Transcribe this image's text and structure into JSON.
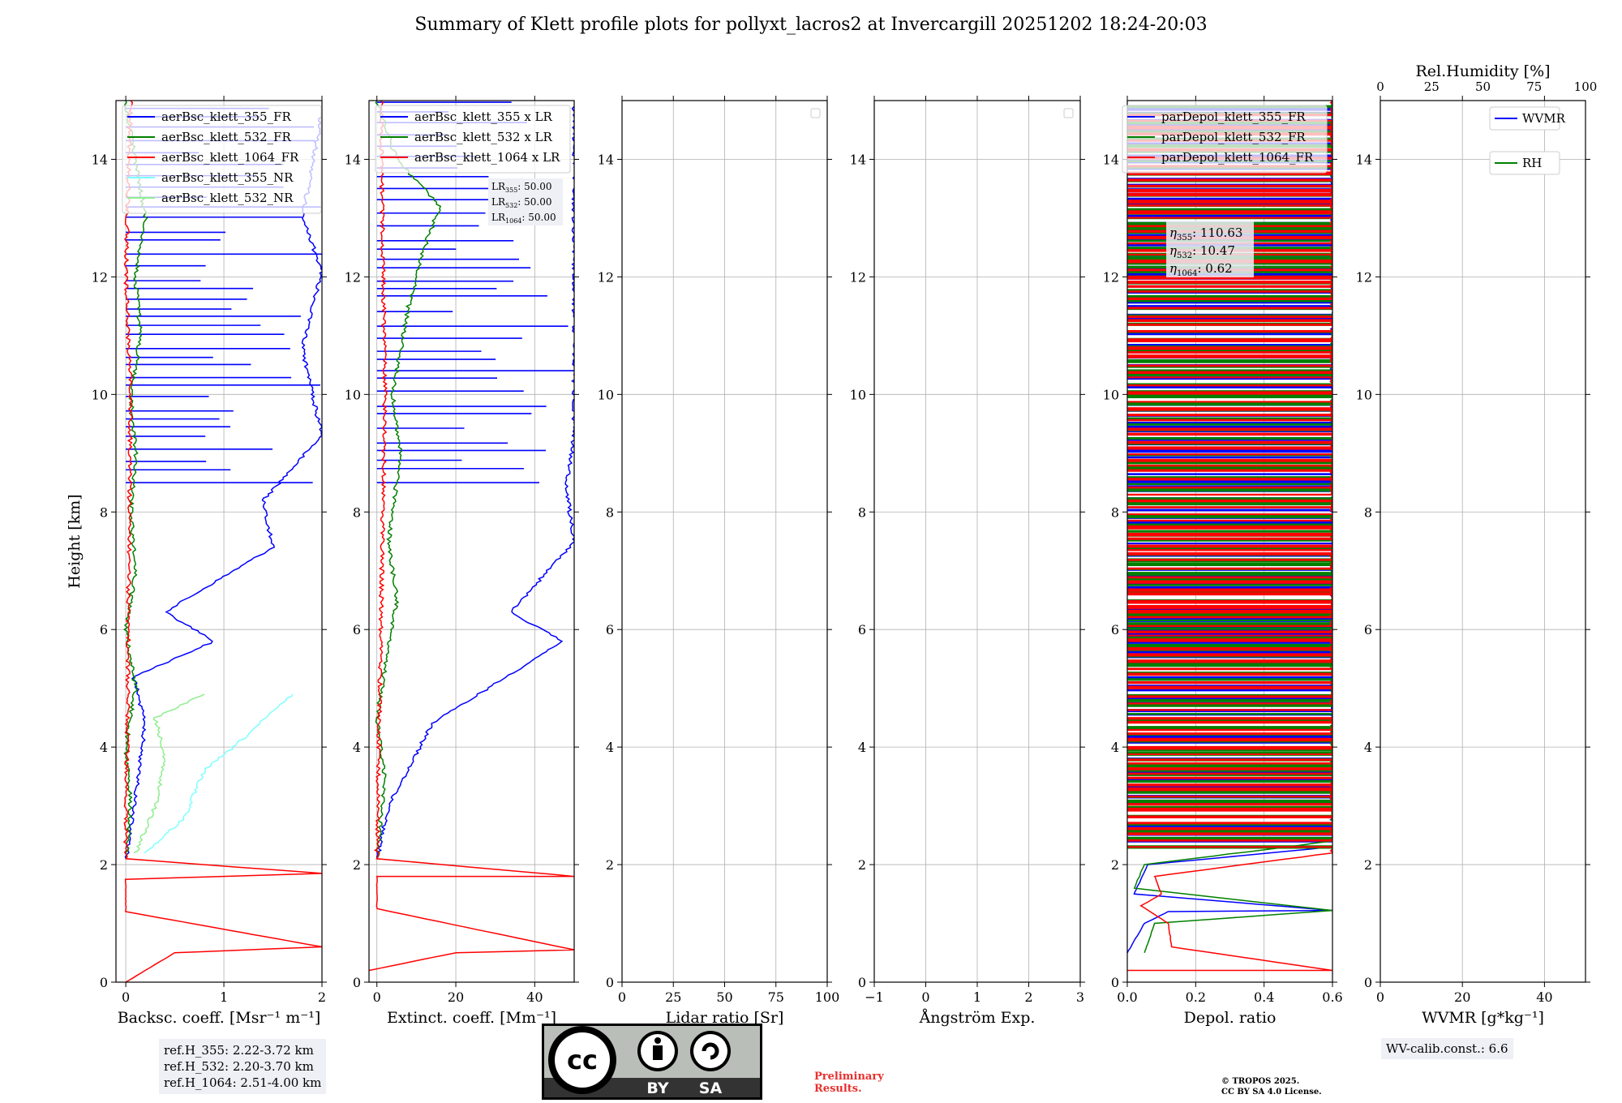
{
  "figure": {
    "title": "Summary of Klett profile plots for pollyxt_lacros2 at Invercargill 20251202 18:24-20:03",
    "ref_heights": [
      "ref.H_355: 2.22-3.72 km",
      "ref.H_532: 2.20-3.70 km",
      "ref.H_1064: 2.51-4.00 km"
    ],
    "preliminary": [
      "Preliminary",
      "Results."
    ],
    "copyright": [
      "© TROPOS 2025.",
      "CC BY SA 4.0 License."
    ],
    "wv_calib": "WV-calib.const.: 6.6",
    "license_badge": [
      "BY",
      "SA"
    ],
    "colors": {
      "c355": "#0000ff",
      "c532": "#008000",
      "c1064": "#ff0000",
      "cnr355": "#7fffff",
      "cnr532": "#90ee90"
    }
  },
  "chart_data": [
    {
      "type": "line",
      "panel": "backscatter",
      "ylabel": "Height [km]",
      "xlabel": "Backsc. coeff. [Msr⁻¹ m⁻¹]",
      "xlim": [
        -0.1,
        2.0
      ],
      "ylim": [
        0,
        15
      ],
      "xticks": [
        "0",
        "1",
        "2"
      ],
      "xtick_values": [
        0,
        1,
        2
      ],
      "yticks": [
        "0",
        "2",
        "4",
        "6",
        "8",
        "10",
        "12",
        "14"
      ],
      "legend": [
        "aerBsc_klett_355_FR",
        "aerBsc_klett_532_FR",
        "aerBsc_klett_1064_FR",
        "aerBsc_klett_355_NR",
        "aerBsc_klett_532_NR"
      ],
      "series": [
        {
          "name": "aerBsc_klett_355_FR",
          "color": "#0000ff",
          "points": [
            [
              0.0,
              2.1
            ],
            [
              0.05,
              2.6
            ],
            [
              0.1,
              3.2
            ],
            [
              0.2,
              4.4
            ],
            [
              0.08,
              5.2
            ],
            [
              0.9,
              5.8
            ],
            [
              0.4,
              6.3
            ],
            [
              1.5,
              7.4
            ],
            [
              1.4,
              8.2
            ],
            [
              2.0,
              9.3
            ],
            [
              1.9,
              10.0
            ],
            [
              1.8,
              10.8
            ],
            [
              2.0,
              12.1
            ],
            [
              1.8,
              13.0
            ],
            [
              2.0,
              14.8
            ]
          ]
        },
        {
          "name": "aerBsc_klett_532_FR",
          "color": "#008000",
          "points": [
            [
              0.0,
              2.1
            ],
            [
              0.05,
              3.0
            ],
            [
              0.0,
              4.0
            ],
            [
              0.1,
              5.0
            ],
            [
              0.0,
              6.0
            ],
            [
              0.1,
              7.0
            ],
            [
              0.05,
              8.0
            ],
            [
              0.1,
              9.0
            ],
            [
              0.05,
              10.0
            ],
            [
              0.15,
              11.0
            ],
            [
              0.1,
              12.0
            ],
            [
              0.2,
              13.0
            ],
            [
              0.1,
              14.0
            ],
            [
              0.0,
              15.0
            ]
          ]
        },
        {
          "name": "aerBsc_klett_1064_FR",
          "color": "#ff0000",
          "points": [
            [
              0.0,
              0.0
            ],
            [
              0.5,
              0.5
            ],
            [
              2.0,
              0.6
            ],
            [
              0.0,
              1.2
            ],
            [
              0.0,
              1.75
            ],
            [
              2.0,
              1.85
            ],
            [
              0.0,
              2.1
            ],
            [
              0.02,
              5.0
            ],
            [
              0.05,
              10.0
            ],
            [
              0.0,
              12.0
            ],
            [
              0.05,
              15.0
            ]
          ]
        },
        {
          "name": "aerBsc_klett_355_NR",
          "color": "#7fffff",
          "points": [
            [
              0.2,
              2.2
            ],
            [
              0.6,
              2.8
            ],
            [
              0.8,
              3.6
            ],
            [
              1.1,
              4.0
            ],
            [
              1.7,
              4.9
            ]
          ]
        },
        {
          "name": "aerBsc_klett_532_NR",
          "color": "#90ee90",
          "points": [
            [
              0.1,
              2.2
            ],
            [
              0.3,
              3.0
            ],
            [
              0.4,
              3.8
            ],
            [
              0.3,
              4.5
            ],
            [
              0.8,
              4.9
            ]
          ]
        }
      ]
    },
    {
      "type": "line",
      "panel": "extinction",
      "xlabel": "Extinct. coeff. [Mm⁻¹]",
      "xlim": [
        -2,
        50
      ],
      "ylim": [
        0,
        15
      ],
      "xticks": [
        "0",
        "20",
        "40"
      ],
      "xtick_values": [
        0,
        20,
        40
      ],
      "yticks": [
        "0",
        "2",
        "4",
        "6",
        "8",
        "10",
        "12",
        "14"
      ],
      "legend": [
        "aerBsc_klett_355 x LR",
        "aerBsc_klett_532 x LR",
        "aerBsc_klett_1064 x LR"
      ],
      "lr_labels": {
        "LR355": "50.00",
        "LR532": "50.00",
        "LR1064": "50.00"
      },
      "series": [
        {
          "name": "aerBsc_klett_355 x LR",
          "color": "#0000ff",
          "points": [
            [
              0,
              2.1
            ],
            [
              3,
              3.0
            ],
            [
              14,
              4.4
            ],
            [
              47,
              5.8
            ],
            [
              34,
              6.3
            ],
            [
              50,
              7.5
            ],
            [
              48,
              8.4
            ],
            [
              50,
              9.3
            ],
            [
              50,
              10.3
            ],
            [
              50,
              12.0
            ],
            [
              50,
              13.5
            ],
            [
              50,
              14.9
            ]
          ]
        },
        {
          "name": "aerBsc_klett_532 x LR",
          "color": "#008000",
          "points": [
            [
              0,
              2.1
            ],
            [
              2,
              3.5
            ],
            [
              0,
              4.5
            ],
            [
              5,
              6.5
            ],
            [
              3,
              7.5
            ],
            [
              6,
              9.0
            ],
            [
              4,
              10.0
            ],
            [
              8,
              11.5
            ],
            [
              12,
              12.5
            ],
            [
              16,
              13.2
            ],
            [
              5,
              14.0
            ],
            [
              0,
              15.0
            ]
          ]
        },
        {
          "name": "aerBsc_klett_1064 x LR",
          "color": "#ff0000",
          "points": [
            [
              -2,
              0.2
            ],
            [
              20,
              0.5
            ],
            [
              50,
              0.55
            ],
            [
              0,
              1.25
            ],
            [
              0,
              1.8
            ],
            [
              50,
              1.8
            ],
            [
              0,
              2.1
            ],
            [
              1,
              6.0
            ],
            [
              2,
              10.0
            ],
            [
              1,
              15.0
            ]
          ]
        }
      ]
    },
    {
      "type": "line",
      "panel": "lidar_ratio",
      "xlabel": "Lidar ratio [Sr]",
      "xlim": [
        0,
        100
      ],
      "ylim": [
        0,
        15
      ],
      "xticks": [
        "0",
        "25",
        "50",
        "75",
        "100"
      ],
      "xtick_values": [
        0,
        25,
        50,
        75,
        100
      ],
      "yticks": [
        "0",
        "2",
        "4",
        "6",
        "8",
        "10",
        "12",
        "14"
      ],
      "series": []
    },
    {
      "type": "line",
      "panel": "angstrom",
      "xlabel": "Ångström Exp.",
      "xlim": [
        -1,
        3
      ],
      "ylim": [
        0,
        15
      ],
      "xticks": [
        "−1",
        "0",
        "1",
        "2",
        "3"
      ],
      "xtick_values": [
        -1,
        0,
        1,
        2,
        3
      ],
      "yticks": [
        "0",
        "2",
        "4",
        "6",
        "8",
        "10",
        "12",
        "14"
      ],
      "series": []
    },
    {
      "type": "line",
      "panel": "depol",
      "xlabel": "Depol. ratio",
      "xlim": [
        0,
        0.6
      ],
      "ylim": [
        0,
        15
      ],
      "xticks": [
        "0.0",
        "0.2",
        "0.4",
        "0.6"
      ],
      "xtick_values": [
        0,
        0.2,
        0.4,
        0.6
      ],
      "yticks": [
        "0",
        "2",
        "4",
        "6",
        "8",
        "10",
        "12",
        "14"
      ],
      "legend": [
        "parDepol_klett_355_FR",
        "parDepol_klett_532_FR",
        "parDepol_klett_1064_FR"
      ],
      "eta_labels": {
        "eta355": "110.63",
        "eta532": "10.47",
        "eta1064": "0.62"
      },
      "series": [
        {
          "name": "parDepol_klett_355_FR",
          "color": "#0000ff",
          "points": [
            [
              0.0,
              0.5
            ],
            [
              0.05,
              1.0
            ],
            [
              0.12,
              1.2
            ],
            [
              0.6,
              1.22
            ],
            [
              0.02,
              1.5
            ],
            [
              0.06,
              2.0
            ],
            [
              0.6,
              2.3
            ],
            [
              0.6,
              15.0
            ]
          ]
        },
        {
          "name": "parDepol_klett_532_FR",
          "color": "#008000",
          "points": [
            [
              0.05,
              0.5
            ],
            [
              0.08,
              1.0
            ],
            [
              0.6,
              1.22
            ],
            [
              0.02,
              1.6
            ],
            [
              0.05,
              2.0
            ],
            [
              0.6,
              2.4
            ],
            [
              0.6,
              15.0
            ]
          ]
        },
        {
          "name": "parDepol_klett_1064_FR",
          "color": "#ff0000",
          "points": [
            [
              0.0,
              0.2
            ],
            [
              0.6,
              0.2
            ],
            [
              0.13,
              0.6
            ],
            [
              0.12,
              1.0
            ],
            [
              0.04,
              1.3
            ],
            [
              0.1,
              1.5
            ],
            [
              0.08,
              1.8
            ],
            [
              0.6,
              2.2
            ],
            [
              0.6,
              15.0
            ]
          ]
        }
      ]
    },
    {
      "type": "line",
      "panel": "wvmr",
      "xlabel": "WVMR [g*kg⁻¹]",
      "top_xlabel": "Rel.Humidity [%]",
      "xlim": [
        0,
        50
      ],
      "ylim": [
        0,
        15
      ],
      "xticks": [
        "0",
        "20",
        "40"
      ],
      "xtick_values": [
        0,
        20,
        40
      ],
      "top_xticks": [
        "0",
        "25",
        "50",
        "75",
        "100"
      ],
      "top_xtick_values": [
        0,
        25,
        50,
        75,
        100
      ],
      "yticks": [
        "0",
        "2",
        "4",
        "6",
        "8",
        "10",
        "12",
        "14"
      ],
      "legend": [
        "WVMR",
        "RH"
      ],
      "series": []
    }
  ]
}
